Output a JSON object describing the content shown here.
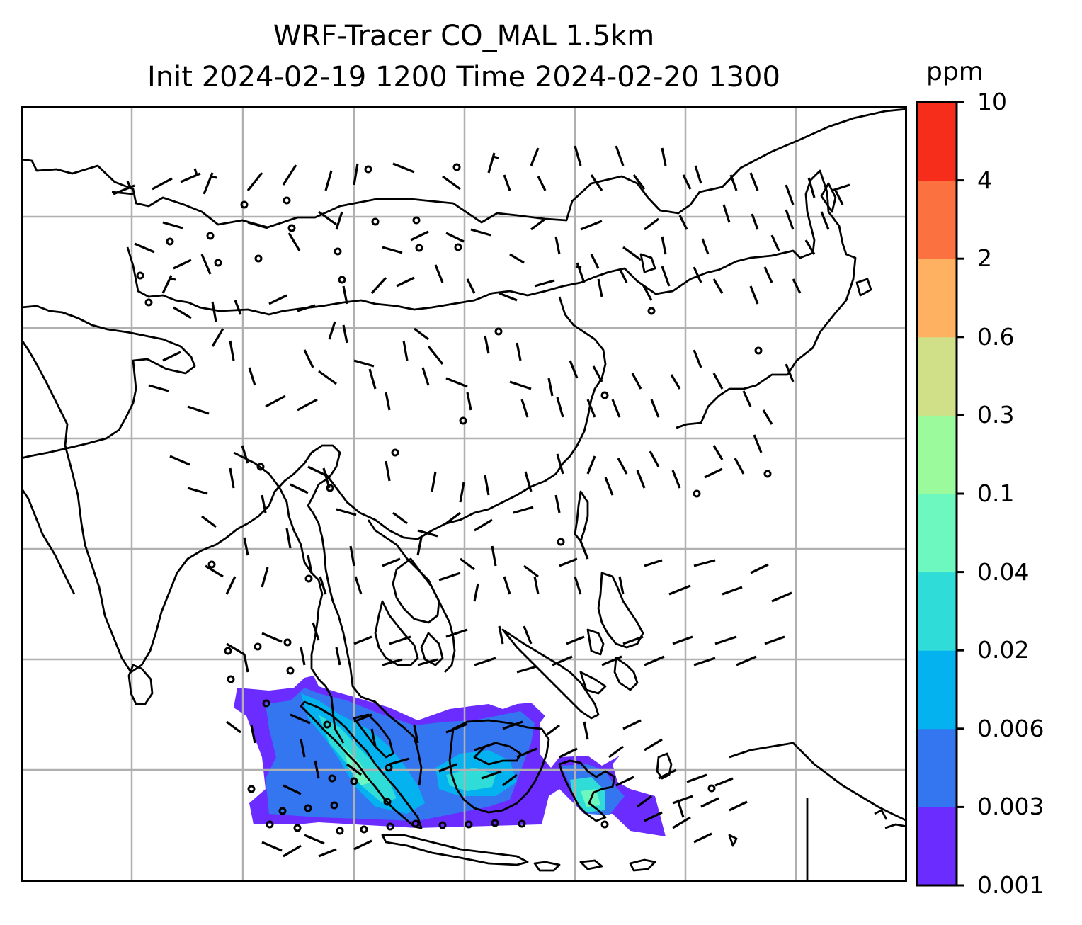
{
  "title": {
    "line1": "WRF-Tracer CO_MAL 1.5km",
    "line2": "Init 2024-02-19 1200 Time 2024-02-20 1300"
  },
  "colorbar": {
    "unit": "ppm",
    "levels": [
      "0.001",
      "0.003",
      "0.006",
      "0.02",
      "0.04",
      "0.1",
      "0.3",
      "0.6",
      "2",
      "4",
      "10"
    ],
    "colors": [
      "#6a2cff",
      "#3475f0",
      "#04b2ef",
      "#2fdcd8",
      "#6cf8be",
      "#9bfa9c",
      "#cfe088",
      "#fdb161",
      "#fc7140",
      "#f62d1a"
    ]
  },
  "map": {
    "region": "Asia / Southeast Asia",
    "field": "CO_MAL tracer concentration with wind barbs",
    "gridlines": true,
    "coastline_color": "#000000",
    "plume_location": "Malaysia / Sumatra / Borneo"
  }
}
